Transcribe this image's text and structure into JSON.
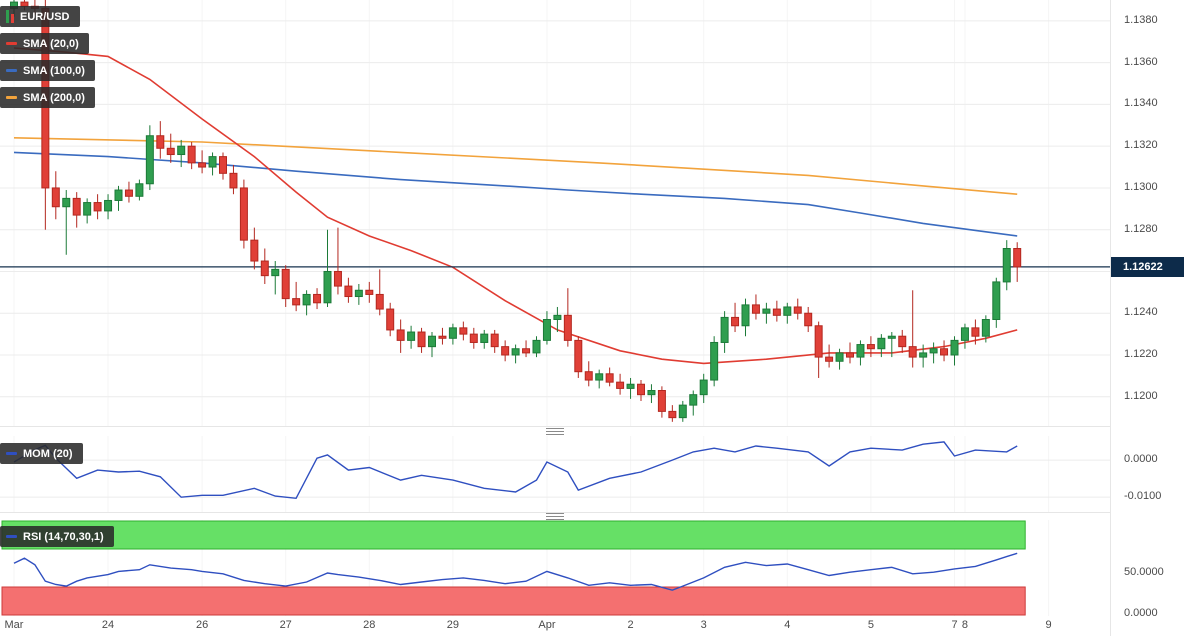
{
  "colors": {
    "candle_up": "#2f9e4f",
    "candle_up_border": "#1c7a38",
    "candle_down": "#e04038",
    "candle_down_border": "#b3271f",
    "sma20": "#e03c32",
    "sma100": "#3a6bbf",
    "sma200": "#f2a33c",
    "mom_line": "#2f4fc0",
    "rsi_line": "#2f4fc0",
    "rsi_overbought_band": "#66e066",
    "rsi_band_green_border": "#2faf2f",
    "rsi_oversold_band": "#f47070",
    "rsi_band_red_border": "#cc3a3a",
    "price_line": "#16324f",
    "price_tag_bg": "#0d2b4a",
    "grid": "#ececec",
    "grid_vertical": "#f5f5f5",
    "axis_text": "#4a4a4a"
  },
  "legend": {
    "symbol": {
      "label": "EUR/USD"
    },
    "sma20": {
      "label": "SMA (20,0)"
    },
    "sma100": {
      "label": "SMA (100,0)"
    },
    "sma200": {
      "label": "SMA (200,0)"
    },
    "mom": {
      "label": "MOM (20)"
    },
    "rsi": {
      "label": "RSI (14,70,30,1)"
    }
  },
  "price_axis": {
    "last_price_label": "1.12622",
    "labels": [
      "1.1380",
      "1.1360",
      "1.1340",
      "1.1320",
      "1.1300",
      "1.1280",
      "1.1260",
      "1.1240",
      "1.1220",
      "1.1200"
    ]
  },
  "mom_axis": {
    "labels": [
      {
        "text": "0.0000",
        "value": 0
      },
      {
        "text": "-0.0100",
        "value": -0.01
      }
    ]
  },
  "rsi_axis": {
    "labels": [
      {
        "text": "50.0000",
        "value": 50
      },
      {
        "text": "0.0000",
        "value": 0
      }
    ]
  },
  "time_axis": {
    "ticks": [
      {
        "label": "Mar",
        "i": 0
      },
      {
        "label": "24",
        "i": 9
      },
      {
        "label": "26",
        "i": 18
      },
      {
        "label": "27",
        "i": 26
      },
      {
        "label": "28",
        "i": 34
      },
      {
        "label": "29",
        "i": 42
      },
      {
        "label": "Apr",
        "i": 51
      },
      {
        "label": "2",
        "i": 59
      },
      {
        "label": "3",
        "i": 66
      },
      {
        "label": "4",
        "i": 74
      },
      {
        "label": "5",
        "i": 82
      },
      {
        "label": "7",
        "i": 90
      },
      {
        "label": "8",
        "i": 91
      },
      {
        "label": "9",
        "i": 99
      }
    ]
  },
  "chart_data": {
    "type": "candlestick",
    "title": "EUR/USD",
    "last_price": 1.12622,
    "price_range": [
      1.1186,
      1.139
    ],
    "candles": [
      [
        1.1386,
        1.1391,
        1.1382,
        1.1389
      ],
      [
        1.1389,
        1.1393,
        1.1385,
        1.1387
      ],
      [
        1.1387,
        1.1392,
        1.1383,
        1.1386
      ],
      [
        1.1386,
        1.139,
        1.128,
        1.13
      ],
      [
        1.13,
        1.1308,
        1.1285,
        1.1291
      ],
      [
        1.1291,
        1.1299,
        1.1268,
        1.1295
      ],
      [
        1.1295,
        1.1298,
        1.1281,
        1.1287
      ],
      [
        1.1287,
        1.1295,
        1.1283,
        1.1293
      ],
      [
        1.1293,
        1.1297,
        1.1285,
        1.1289
      ],
      [
        1.1289,
        1.1297,
        1.1285,
        1.1294
      ],
      [
        1.1294,
        1.1301,
        1.1289,
        1.1299
      ],
      [
        1.1299,
        1.1303,
        1.1293,
        1.1296
      ],
      [
        1.1296,
        1.1304,
        1.1294,
        1.1302
      ],
      [
        1.1302,
        1.133,
        1.1299,
        1.1325
      ],
      [
        1.1325,
        1.1332,
        1.1314,
        1.1319
      ],
      [
        1.1319,
        1.1326,
        1.1312,
        1.1316
      ],
      [
        1.1316,
        1.1323,
        1.131,
        1.132
      ],
      [
        1.132,
        1.1322,
        1.1309,
        1.1312
      ],
      [
        1.1312,
        1.1318,
        1.1307,
        1.131
      ],
      [
        1.131,
        1.1317,
        1.1306,
        1.1315
      ],
      [
        1.1315,
        1.1317,
        1.1304,
        1.1307
      ],
      [
        1.1307,
        1.1311,
        1.1297,
        1.13
      ],
      [
        1.13,
        1.1304,
        1.1271,
        1.1275
      ],
      [
        1.1275,
        1.1281,
        1.1261,
        1.1265
      ],
      [
        1.1265,
        1.1271,
        1.1254,
        1.1258
      ],
      [
        1.1258,
        1.1265,
        1.1249,
        1.1261
      ],
      [
        1.1261,
        1.1263,
        1.1243,
        1.1247
      ],
      [
        1.1247,
        1.1255,
        1.1241,
        1.1244
      ],
      [
        1.1244,
        1.1251,
        1.1239,
        1.1249
      ],
      [
        1.1249,
        1.1252,
        1.1242,
        1.1245
      ],
      [
        1.1245,
        1.128,
        1.1243,
        1.126
      ],
      [
        1.126,
        1.1281,
        1.1249,
        1.1253
      ],
      [
        1.1253,
        1.1257,
        1.1245,
        1.1248
      ],
      [
        1.1248,
        1.1254,
        1.1244,
        1.1251
      ],
      [
        1.1251,
        1.1255,
        1.1245,
        1.1249
      ],
      [
        1.1249,
        1.1261,
        1.1239,
        1.1242
      ],
      [
        1.1242,
        1.1245,
        1.1229,
        1.1232
      ],
      [
        1.1232,
        1.1237,
        1.1221,
        1.1227
      ],
      [
        1.1227,
        1.1234,
        1.1223,
        1.1231
      ],
      [
        1.1231,
        1.1233,
        1.1221,
        1.1224
      ],
      [
        1.1224,
        1.1231,
        1.1219,
        1.1229
      ],
      [
        1.1229,
        1.1233,
        1.1225,
        1.1228
      ],
      [
        1.1228,
        1.1235,
        1.1225,
        1.1233
      ],
      [
        1.1233,
        1.1236,
        1.1227,
        1.123
      ],
      [
        1.123,
        1.1233,
        1.1223,
        1.1226
      ],
      [
        1.1226,
        1.1232,
        1.1223,
        1.123
      ],
      [
        1.123,
        1.1232,
        1.1221,
        1.1224
      ],
      [
        1.1224,
        1.1227,
        1.1217,
        1.122
      ],
      [
        1.122,
        1.1225,
        1.1216,
        1.1223
      ],
      [
        1.1223,
        1.1227,
        1.1219,
        1.1221
      ],
      [
        1.1221,
        1.1229,
        1.1219,
        1.1227
      ],
      [
        1.1227,
        1.1241,
        1.1225,
        1.1237
      ],
      [
        1.1237,
        1.1243,
        1.1231,
        1.1239
      ],
      [
        1.1239,
        1.1252,
        1.1224,
        1.1227
      ],
      [
        1.1227,
        1.1229,
        1.1209,
        1.1212
      ],
      [
        1.1212,
        1.1217,
        1.1205,
        1.1208
      ],
      [
        1.1208,
        1.1213,
        1.1204,
        1.1211
      ],
      [
        1.1211,
        1.1214,
        1.1205,
        1.1207
      ],
      [
        1.1207,
        1.1211,
        1.1201,
        1.1204
      ],
      [
        1.1204,
        1.1209,
        1.1199,
        1.1206
      ],
      [
        1.1206,
        1.1208,
        1.1198,
        1.1201
      ],
      [
        1.1201,
        1.1206,
        1.1197,
        1.1203
      ],
      [
        1.1203,
        1.1205,
        1.119,
        1.1193
      ],
      [
        1.1193,
        1.1196,
        1.1188,
        1.119
      ],
      [
        1.119,
        1.1198,
        1.1188,
        1.1196
      ],
      [
        1.1196,
        1.1203,
        1.1191,
        1.1201
      ],
      [
        1.1201,
        1.1211,
        1.1197,
        1.1208
      ],
      [
        1.1208,
        1.1229,
        1.1205,
        1.1226
      ],
      [
        1.1226,
        1.1241,
        1.1221,
        1.1238
      ],
      [
        1.1238,
        1.1245,
        1.1231,
        1.1234
      ],
      [
        1.1234,
        1.1247,
        1.1229,
        1.1244
      ],
      [
        1.1244,
        1.1249,
        1.1237,
        1.124
      ],
      [
        1.124,
        1.1245,
        1.1235,
        1.1242
      ],
      [
        1.1242,
        1.1246,
        1.1236,
        1.1239
      ],
      [
        1.1239,
        1.1245,
        1.1235,
        1.1243
      ],
      [
        1.1243,
        1.1247,
        1.1237,
        1.124
      ],
      [
        1.124,
        1.1243,
        1.1231,
        1.1234
      ],
      [
        1.1234,
        1.1236,
        1.1209,
        1.1219
      ],
      [
        1.1219,
        1.1225,
        1.1214,
        1.1217
      ],
      [
        1.1217,
        1.1223,
        1.1213,
        1.1221
      ],
      [
        1.1221,
        1.1226,
        1.1216,
        1.1219
      ],
      [
        1.1219,
        1.1227,
        1.1215,
        1.1225
      ],
      [
        1.1225,
        1.1229,
        1.1219,
        1.1223
      ],
      [
        1.1223,
        1.123,
        1.1219,
        1.1228
      ],
      [
        1.1228,
        1.1231,
        1.1219,
        1.1229
      ],
      [
        1.1229,
        1.1232,
        1.1221,
        1.1224
      ],
      [
        1.1224,
        1.1251,
        1.1214,
        1.1219
      ],
      [
        1.1219,
        1.1225,
        1.1214,
        1.1221
      ],
      [
        1.1221,
        1.1226,
        1.1216,
        1.1223
      ],
      [
        1.1223,
        1.1227,
        1.1217,
        1.122
      ],
      [
        1.122,
        1.1229,
        1.1215,
        1.1227
      ],
      [
        1.1227,
        1.1235,
        1.1223,
        1.1233
      ],
      [
        1.1233,
        1.1237,
        1.1225,
        1.1229
      ],
      [
        1.1229,
        1.1239,
        1.1226,
        1.1237
      ],
      [
        1.1237,
        1.1257,
        1.1233,
        1.1255
      ],
      [
        1.1255,
        1.1275,
        1.1251,
        1.1271
      ],
      [
        1.1271,
        1.1274,
        1.1255,
        1.12622
      ]
    ],
    "overlays": [
      {
        "name": "SMA (20,0)",
        "color_key": "sma20",
        "points": [
          [
            0,
            1.1367
          ],
          [
            5,
            1.1365
          ],
          [
            9,
            1.1363
          ],
          [
            13,
            1.1352
          ],
          [
            18,
            1.1333
          ],
          [
            23,
            1.1315
          ],
          [
            27,
            1.1298
          ],
          [
            30,
            1.1286
          ],
          [
            34,
            1.1277
          ],
          [
            38,
            1.127
          ],
          [
            42,
            1.1262
          ],
          [
            47,
            1.1246
          ],
          [
            52,
            1.1232
          ],
          [
            58,
            1.1222
          ],
          [
            62,
            1.1218
          ],
          [
            66,
            1.1216
          ],
          [
            72,
            1.1218
          ],
          [
            78,
            1.1221
          ],
          [
            84,
            1.1221
          ],
          [
            89,
            1.1224
          ],
          [
            93,
            1.1228
          ],
          [
            96,
            1.1232
          ]
        ]
      },
      {
        "name": "SMA (100,0)",
        "color_key": "sma100",
        "points": [
          [
            0,
            1.1317
          ],
          [
            9,
            1.1315
          ],
          [
            18,
            1.1312
          ],
          [
            27,
            1.1308
          ],
          [
            37,
            1.1304
          ],
          [
            47,
            1.1301
          ],
          [
            53,
            1.1299
          ],
          [
            60,
            1.1297
          ],
          [
            68,
            1.1295
          ],
          [
            76,
            1.1292
          ],
          [
            81,
            1.1288
          ],
          [
            87,
            1.1283
          ],
          [
            93,
            1.1279
          ],
          [
            96,
            1.1277
          ]
        ]
      },
      {
        "name": "SMA (200,0)",
        "color_key": "sma200",
        "points": [
          [
            0,
            1.1324
          ],
          [
            18,
            1.1322
          ],
          [
            37,
            1.1317
          ],
          [
            56,
            1.1312
          ],
          [
            76,
            1.1306
          ],
          [
            87,
            1.1301
          ],
          [
            96,
            1.1297
          ]
        ]
      }
    ],
    "indicators": [
      {
        "name": "MOM (20)",
        "range": [
          -0.014,
          0.0065
        ],
        "points": [
          [
            0,
            -0.0005
          ],
          [
            2,
            0.0028
          ],
          [
            3,
            0.004
          ],
          [
            4,
            0.0005
          ],
          [
            6,
            -0.0049
          ],
          [
            8,
            -0.0027
          ],
          [
            10,
            -0.0032
          ],
          [
            12,
            -0.003
          ],
          [
            14,
            -0.0045
          ],
          [
            16,
            -0.01
          ],
          [
            18,
            -0.0095
          ],
          [
            20,
            -0.0095
          ],
          [
            23,
            -0.0076
          ],
          [
            25,
            -0.0097
          ],
          [
            27,
            -0.0103
          ],
          [
            29,
            0.0005
          ],
          [
            30,
            0.0014
          ],
          [
            32,
            -0.0027
          ],
          [
            34,
            -0.002
          ],
          [
            37,
            -0.0054
          ],
          [
            39,
            -0.0041
          ],
          [
            42,
            -0.0054
          ],
          [
            45,
            -0.0076
          ],
          [
            48,
            -0.0086
          ],
          [
            50,
            -0.0054
          ],
          [
            51,
            -0.0005
          ],
          [
            53,
            -0.0032
          ],
          [
            54,
            -0.0081
          ],
          [
            57,
            -0.0049
          ],
          [
            60,
            -0.0032
          ],
          [
            63,
            0.0
          ],
          [
            65,
            0.0022
          ],
          [
            67,
            0.0032
          ],
          [
            69,
            0.0022
          ],
          [
            71,
            0.0038
          ],
          [
            73,
            0.0032
          ],
          [
            76,
            0.0022
          ],
          [
            78,
            -0.0016
          ],
          [
            80,
            0.0022
          ],
          [
            82,
            0.0032
          ],
          [
            85,
            0.0027
          ],
          [
            87,
            0.0043
          ],
          [
            89,
            0.0049
          ],
          [
            90,
            0.0011
          ],
          [
            92,
            0.0027
          ],
          [
            95,
            0.0022
          ],
          [
            96,
            0.0038
          ]
        ]
      },
      {
        "name": "RSI (14,70,30,1)",
        "range": [
          0,
          100
        ],
        "bands": {
          "overbought": [
            70,
            100
          ],
          "oversold": [
            0,
            30
          ]
        },
        "points": [
          [
            0,
            62
          ],
          [
            1,
            68
          ],
          [
            2,
            60
          ],
          [
            3,
            40
          ],
          [
            4,
            36
          ],
          [
            5,
            34
          ],
          [
            6,
            40
          ],
          [
            7,
            44
          ],
          [
            9,
            48
          ],
          [
            10,
            52
          ],
          [
            12,
            54
          ],
          [
            13,
            60
          ],
          [
            15,
            56
          ],
          [
            17,
            54
          ],
          [
            18,
            52
          ],
          [
            20,
            49
          ],
          [
            22,
            41
          ],
          [
            24,
            37
          ],
          [
            26,
            34
          ],
          [
            28,
            39
          ],
          [
            30,
            50
          ],
          [
            31,
            48
          ],
          [
            33,
            45
          ],
          [
            35,
            41
          ],
          [
            37,
            36
          ],
          [
            39,
            39
          ],
          [
            41,
            42
          ],
          [
            43,
            44
          ],
          [
            45,
            41
          ],
          [
            47,
            37
          ],
          [
            49,
            40
          ],
          [
            51,
            52
          ],
          [
            53,
            44
          ],
          [
            55,
            35
          ],
          [
            57,
            38
          ],
          [
            59,
            35
          ],
          [
            61,
            36
          ],
          [
            63,
            29
          ],
          [
            64,
            34
          ],
          [
            66,
            44
          ],
          [
            68,
            57
          ],
          [
            70,
            63
          ],
          [
            72,
            59
          ],
          [
            74,
            61
          ],
          [
            76,
            54
          ],
          [
            78,
            47
          ],
          [
            80,
            51
          ],
          [
            82,
            54
          ],
          [
            84,
            57
          ],
          [
            86,
            49
          ],
          [
            88,
            51
          ],
          [
            90,
            55
          ],
          [
            92,
            58
          ],
          [
            94,
            66
          ],
          [
            95,
            70
          ],
          [
            96,
            74
          ]
        ]
      }
    ]
  }
}
